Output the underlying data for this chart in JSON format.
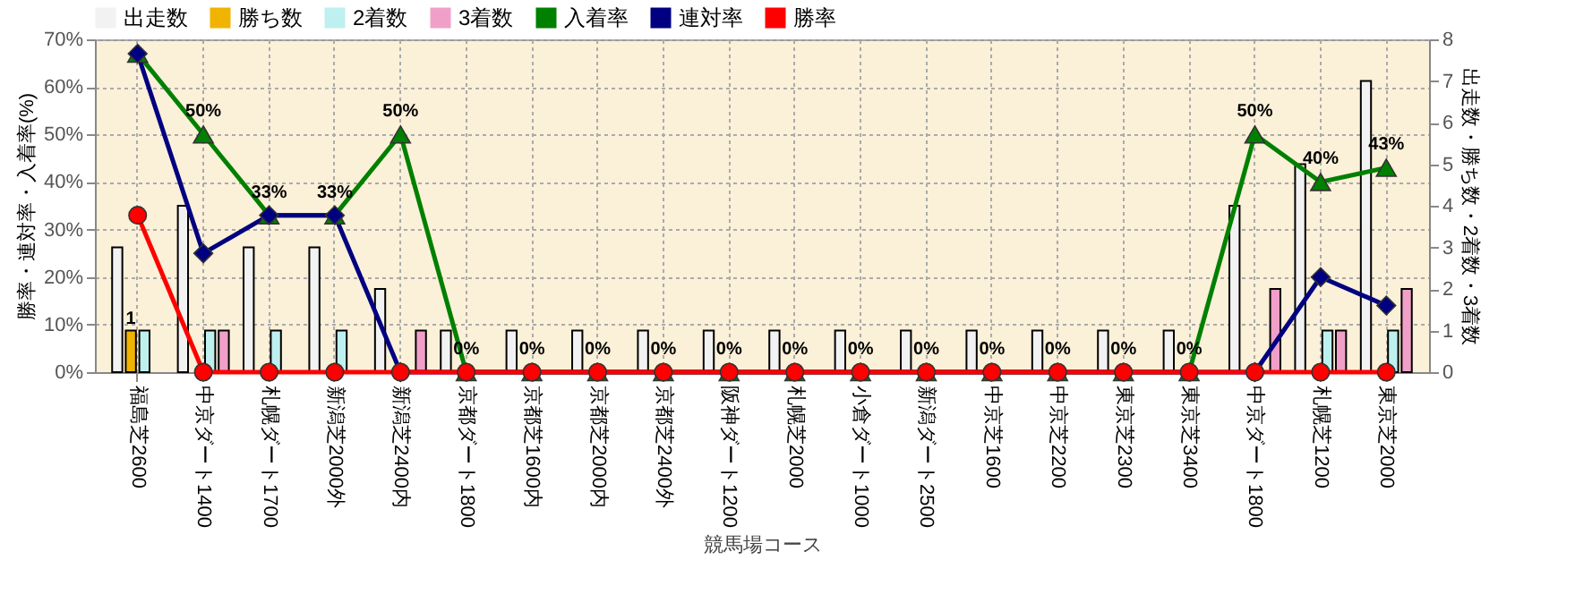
{
  "chart_data": {
    "type": "bar",
    "xlabel": "競馬場コース",
    "ylabel": "勝率・連対率・入着率(%)",
    "y2label": "出走数・勝ち数・2着数・3着数",
    "categories": [
      "福島芝2600",
      "中京ダート1400",
      "札幌ダート1700",
      "新潟芝2000外",
      "新潟芝2400内",
      "京都ダート1800",
      "京都芝1600内",
      "京都芝2000内",
      "京都芝2400外",
      "阪神ダート1200",
      "札幌芝2000",
      "小倉ダート1000",
      "新潟ダート2500",
      "中京芝1600",
      "中京芝2200",
      "東京芝2300",
      "東京芝3400",
      "中京ダート1800",
      "札幌芝1200",
      "東京芝2000"
    ],
    "series": [
      {
        "name": "出走数",
        "axis": "y2",
        "color": "#f2f2f2",
        "values": [
          3,
          4,
          3,
          3,
          2,
          1,
          1,
          1,
          1,
          1,
          1,
          1,
          1,
          1,
          1,
          1,
          1,
          4,
          5,
          7
        ]
      },
      {
        "name": "勝ち数",
        "axis": "y2",
        "color": "#f0b400",
        "values": [
          1,
          0,
          0,
          0,
          0,
          0,
          0,
          0,
          0,
          0,
          0,
          0,
          0,
          0,
          0,
          0,
          0,
          0,
          0,
          0
        ],
        "value_labels": [
          "1",
          null,
          null,
          null,
          null,
          null,
          null,
          null,
          null,
          null,
          null,
          null,
          null,
          null,
          null,
          null,
          null,
          null,
          null,
          null
        ]
      },
      {
        "name": "2着数",
        "axis": "y2",
        "color": "#bff0f0",
        "values": [
          1,
          1,
          1,
          1,
          0,
          0,
          0,
          0,
          0,
          0,
          0,
          0,
          0,
          0,
          0,
          0,
          0,
          0,
          1,
          1
        ]
      },
      {
        "name": "3着数",
        "axis": "y2",
        "color": "#f0a0c8",
        "values": [
          0,
          1,
          0,
          0,
          1,
          0,
          0,
          0,
          0,
          0,
          0,
          0,
          0,
          0,
          0,
          0,
          0,
          2,
          1,
          2
        ]
      },
      {
        "name": "入着率",
        "type": "line",
        "marker": "triangle",
        "color": "#008000",
        "values": [
          67,
          50,
          33,
          33,
          50,
          0,
          0,
          0,
          0,
          0,
          0,
          0,
          0,
          0,
          0,
          0,
          0,
          50,
          40,
          43
        ],
        "value_labels": [
          null,
          "50%",
          "33%",
          "33%",
          "50%",
          "0%",
          "0%",
          "0%",
          "0%",
          "0%",
          "0%",
          "0%",
          "0%",
          "0%",
          "0%",
          "0%",
          "0%",
          "50%",
          "40%",
          "43%"
        ]
      },
      {
        "name": "連対率",
        "type": "line",
        "marker": "diamond",
        "color": "#000080",
        "values": [
          67,
          25,
          33,
          33,
          0,
          null,
          null,
          null,
          null,
          null,
          null,
          null,
          null,
          null,
          null,
          null,
          null,
          0,
          20,
          14
        ]
      },
      {
        "name": "勝率",
        "type": "line",
        "marker": "circle",
        "color": "#ff0000",
        "values": [
          33,
          0,
          0,
          0,
          0,
          0,
          0,
          0,
          0,
          0,
          0,
          0,
          0,
          0,
          0,
          0,
          0,
          0,
          0,
          0
        ]
      }
    ],
    "ylim": [
      0,
      70
    ],
    "yticks": [
      {
        "value": 0,
        "label": "0%"
      },
      {
        "value": 10,
        "label": "10%"
      },
      {
        "value": 20,
        "label": "20%"
      },
      {
        "value": 30,
        "label": "30%"
      },
      {
        "value": 40,
        "label": "40%"
      },
      {
        "value": 50,
        "label": "50%"
      },
      {
        "value": 60,
        "label": "60%"
      },
      {
        "value": 70,
        "label": "70%"
      }
    ],
    "y2lim": [
      0,
      8
    ],
    "y2ticks": [
      0,
      1,
      2,
      3,
      4,
      5,
      6,
      7,
      8
    ],
    "grid": true,
    "legend": "top"
  }
}
